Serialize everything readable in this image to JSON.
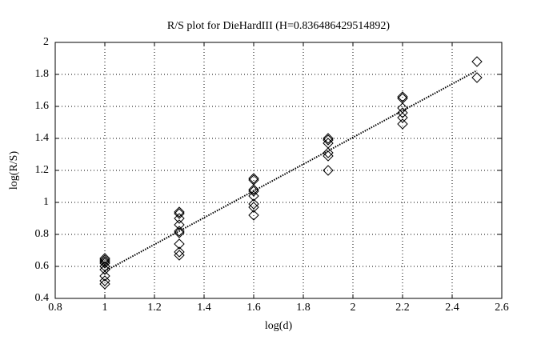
{
  "chart_data": {
    "type": "scatter",
    "title": "R/S plot for DieHardIII (H=0.836486429514892)",
    "x_label": "log(d)",
    "y_label": "log(R/S)",
    "xlim": [
      0.8,
      2.6
    ],
    "xticks": [
      0.8,
      1,
      1.2,
      1.4,
      1.6,
      1.8,
      2,
      2.2,
      2.4,
      2.6
    ],
    "ylim": [
      0.4,
      2
    ],
    "yticks": [
      0.4,
      0.6,
      0.8,
      1,
      1.2,
      1.4,
      1.6,
      1.8,
      2
    ],
    "grid": true,
    "series": [
      {
        "color": "#000000",
        "marker": "diamond",
        "x": [
          1,
          1,
          1,
          1,
          1,
          1,
          1,
          1,
          1,
          1.3,
          1.3,
          1.3,
          1.3,
          1.3,
          1.3,
          1.3,
          1.3,
          1.3,
          1.6,
          1.6,
          1.6,
          1.6,
          1.6,
          1.6,
          1.6,
          1.6,
          1.9,
          1.9,
          1.9,
          1.9,
          1.9,
          1.9,
          2.2,
          2.2,
          2.2,
          2.2,
          2.2,
          2.2,
          2.5,
          2.5
        ],
        "values": [
          0.65,
          0.64,
          0.63,
          0.62,
          0.6,
          0.58,
          0.54,
          0.51,
          0.49,
          0.94,
          0.93,
          0.9,
          0.86,
          0.82,
          0.81,
          0.74,
          0.69,
          0.67,
          1.15,
          1.14,
          1.08,
          1.07,
          1.04,
          0.99,
          0.97,
          0.92,
          1.4,
          1.39,
          1.37,
          1.31,
          1.29,
          1.2,
          1.66,
          1.65,
          1.59,
          1.56,
          1.53,
          1.49,
          1.88,
          1.78
        ]
      },
      {
        "color": "#000000",
        "line": "dotted",
        "x": [
          1,
          2.5
        ],
        "values": [
          0.57,
          1.824
        ]
      }
    ]
  }
}
